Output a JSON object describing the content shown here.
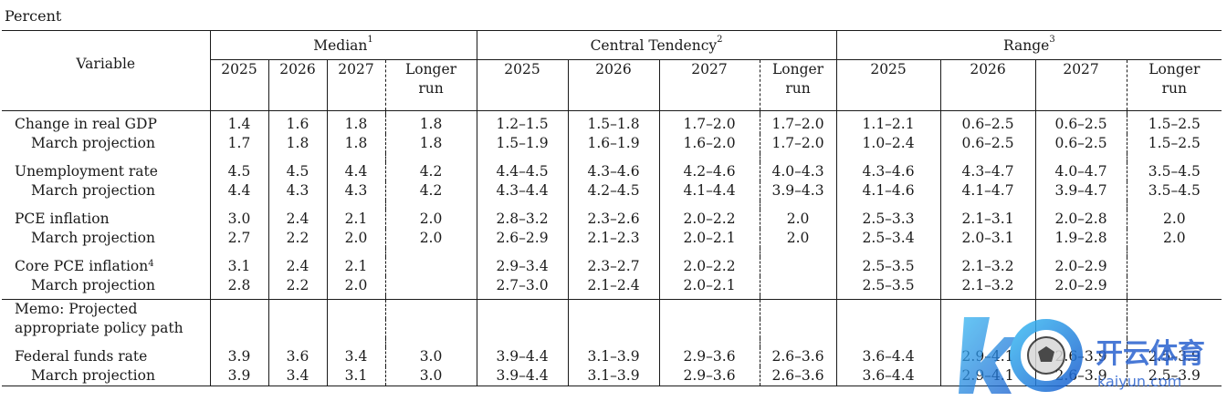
{
  "unit_label": "Percent",
  "headers": {
    "variable": "Variable",
    "groups": [
      {
        "label": "Median",
        "note": "1"
      },
      {
        "label": "Central Tendency",
        "note": "2"
      },
      {
        "label": "Range",
        "note": "3"
      }
    ],
    "years": [
      "2025",
      "2026",
      "2027"
    ],
    "longer_run": [
      "Longer",
      "run"
    ]
  },
  "rows": [
    {
      "label": "Change in real GDP",
      "cells": [
        "1.4",
        "1.6",
        "1.8",
        "1.8",
        "1.2–1.5",
        "1.5–1.8",
        "1.7–2.0",
        "1.7–2.0",
        "1.1–2.1",
        "0.6–2.5",
        "0.6–2.5",
        "1.5–2.5"
      ]
    },
    {
      "label": "March projection",
      "cells": [
        "1.7",
        "1.8",
        "1.8",
        "1.8",
        "1.5–1.9",
        "1.6–1.9",
        "1.6–2.0",
        "1.7–2.0",
        "1.0–2.4",
        "0.6–2.5",
        "0.6–2.5",
        "1.5–2.5"
      ]
    },
    {
      "label": "Unemployment rate",
      "cells": [
        "4.5",
        "4.5",
        "4.4",
        "4.2",
        "4.4–4.5",
        "4.3–4.6",
        "4.2–4.6",
        "4.0–4.3",
        "4.3–4.6",
        "4.3–4.7",
        "4.0–4.7",
        "3.5–4.5"
      ]
    },
    {
      "label": "March projection",
      "cells": [
        "4.4",
        "4.3",
        "4.3",
        "4.2",
        "4.3–4.4",
        "4.2–4.5",
        "4.1–4.4",
        "3.9–4.3",
        "4.1–4.6",
        "4.1–4.7",
        "3.9–4.7",
        "3.5–4.5"
      ]
    },
    {
      "label": "PCE inflation",
      "cells": [
        "3.0",
        "2.4",
        "2.1",
        "2.0",
        "2.8–3.2",
        "2.3–2.6",
        "2.0–2.2",
        "2.0",
        "2.5–3.3",
        "2.1–3.1",
        "2.0–2.8",
        "2.0"
      ]
    },
    {
      "label": "March projection",
      "cells": [
        "2.7",
        "2.2",
        "2.0",
        "2.0",
        "2.6–2.9",
        "2.1–2.3",
        "2.0–2.1",
        "2.0",
        "2.5–3.4",
        "2.0–3.1",
        "1.9–2.8",
        "2.0"
      ]
    },
    {
      "label": "Core PCE inflation",
      "note": "4",
      "cells": [
        "3.1",
        "2.4",
        "2.1",
        "",
        "2.9–3.4",
        "2.3–2.7",
        "2.0–2.2",
        "",
        "2.5–3.5",
        "2.1–3.2",
        "2.0–2.9",
        ""
      ]
    },
    {
      "label": "March projection",
      "cells": [
        "2.8",
        "2.2",
        "2.0",
        "",
        "2.7–3.0",
        "2.1–2.4",
        "2.0–2.1",
        "",
        "2.5–3.5",
        "2.1–3.2",
        "2.0–2.9",
        ""
      ]
    }
  ],
  "memo": {
    "line1": "Memo: Projected",
    "line2": "appropriate policy path"
  },
  "ffr_rows": [
    {
      "label": "Federal funds rate",
      "cells": [
        "3.9",
        "3.6",
        "3.4",
        "3.0",
        "3.9–4.4",
        "3.1–3.9",
        "2.9–3.6",
        "2.6–3.6",
        "3.6–4.4",
        "2.9–4.1",
        "2.6–3.9",
        "2.5–3.9"
      ]
    },
    {
      "label": "March projection",
      "cells": [
        "3.9",
        "3.4",
        "3.1",
        "3.0",
        "3.9–4.4",
        "3.1–3.9",
        "2.9–3.6",
        "2.6–3.6",
        "3.6–4.4",
        "2.9–4.1",
        "2.6–3.9",
        "2.5–3.9"
      ]
    }
  ],
  "watermark": {
    "name": "开云体育",
    "site": "kaiyun.com"
  }
}
